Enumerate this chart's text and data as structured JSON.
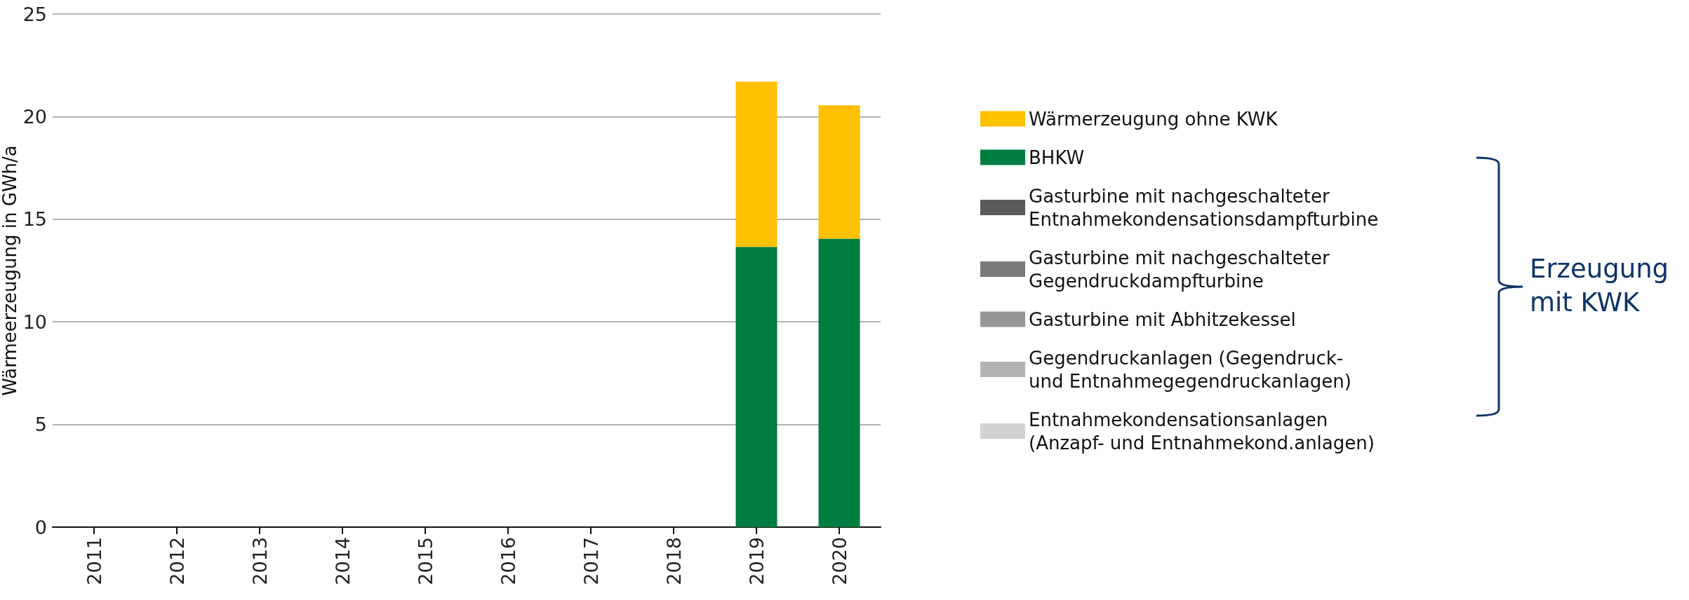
{
  "chart_data": {
    "type": "bar",
    "stacked": true,
    "ylabel": "Wärmeerzeugung in GWh/a",
    "categories": [
      "2011",
      "2012",
      "2013",
      "2014",
      "2015",
      "2016",
      "2017",
      "2018",
      "2019",
      "2020"
    ],
    "series": [
      {
        "name": "Entnahmekondensationsanlagen\n(Anzapf- und Entnahmekond.anlagen)",
        "color": "#d2d2d2",
        "values": [
          null,
          null,
          null,
          null,
          null,
          null,
          null,
          null,
          0,
          0
        ]
      },
      {
        "name": "Gegendruckanlagen (Gegendruck-\nund Entnahmegegendruckanlagen)",
        "color": "#b4b4b4",
        "values": [
          null,
          null,
          null,
          null,
          null,
          null,
          null,
          null,
          0,
          0
        ]
      },
      {
        "name": "Gasturbine mit Abhitzekessel",
        "color": "#969696",
        "values": [
          null,
          null,
          null,
          null,
          null,
          null,
          null,
          null,
          0,
          0
        ]
      },
      {
        "name": "Gasturbine mit nachgeschalteter\nGegendruckdampfturbine",
        "color": "#7a7a7a",
        "values": [
          null,
          null,
          null,
          null,
          null,
          null,
          null,
          null,
          0,
          0
        ]
      },
      {
        "name": "Gasturbine mit nachgeschalteter\nEntnahmekondensationsdampfturbine",
        "color": "#5a5a5a",
        "values": [
          null,
          null,
          null,
          null,
          null,
          null,
          null,
          null,
          0,
          0
        ]
      },
      {
        "name": "BHKW",
        "color": "#007d40",
        "values": [
          null,
          null,
          null,
          null,
          null,
          null,
          null,
          null,
          13.65,
          14.05
        ]
      },
      {
        "name": "Wärmerzeugung ohne KWK",
        "color": "#ffc000",
        "values": [
          null,
          null,
          null,
          null,
          null,
          null,
          null,
          null,
          8.05,
          6.5
        ]
      }
    ],
    "ylim": [
      0,
      25
    ],
    "yticks": [
      0,
      5,
      10,
      15,
      20,
      25
    ],
    "grid": "y",
    "legend": "right",
    "annotations": [
      "Erzeugung\nmit KWK"
    ]
  }
}
